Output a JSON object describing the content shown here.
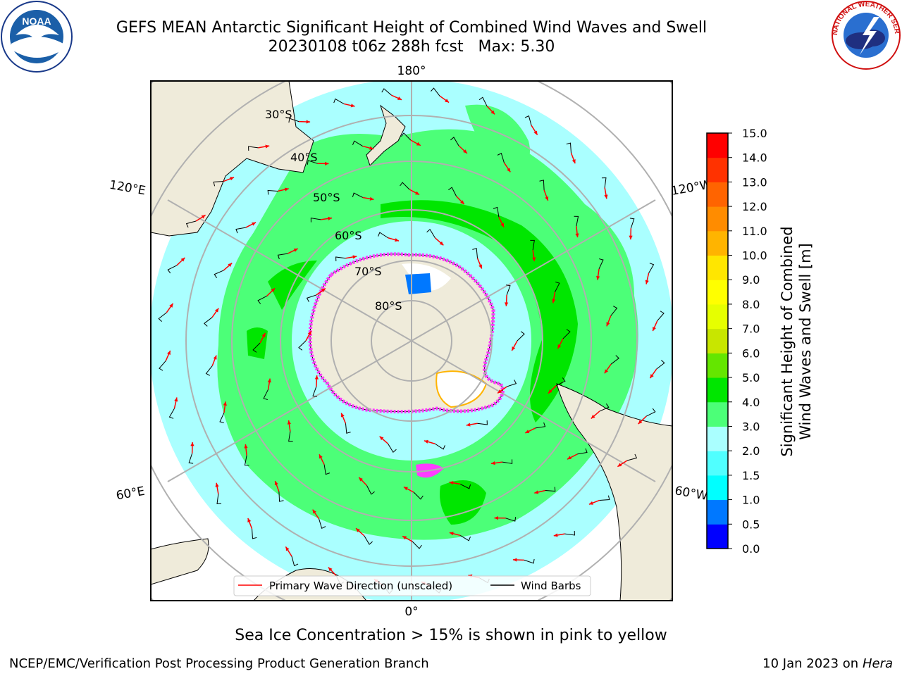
{
  "header": {
    "title_line1": "GEFS MEAN Antarctic Significant Height of Combined Wind Waves and Swell",
    "title_line2": "20230108 t06z 288h fcst   Max: 5.30"
  },
  "logos": {
    "left": {
      "text": "NOAA",
      "ring_text": "NATIONAL OCEANIC AND ATMOSPHERIC ADMINISTRATION · U.S. DEPARTMENT OF COMMERCE"
    },
    "right": {
      "ring_text": "NATIONAL WEATHER SERVICE"
    }
  },
  "map": {
    "lon_labels": {
      "top": "180°",
      "bottom": "0°",
      "upper_left": "120°E",
      "upper_right": "120°W",
      "lower_left": "60°E",
      "lower_right": "60°W"
    },
    "lat_labels": [
      "30°S",
      "40°S",
      "50°S",
      "60°S",
      "70°S",
      "80°S"
    ],
    "legend": {
      "wave_label": "Primary Wave Direction (unscaled)",
      "barb_label": "Wind Barbs",
      "wave_color": "#ff0000",
      "barb_color": "#000000"
    }
  },
  "colorbar": {
    "label_line1": "Significant Height of Combined",
    "label_line2": "Wind Waves and Swell [m]",
    "ticks": [
      "0.0",
      "0.5",
      "1.0",
      "1.5",
      "2.0",
      "3.0",
      "4.0",
      "5.0",
      "6.0",
      "7.0",
      "8.0",
      "9.0",
      "10.0",
      "11.0",
      "12.0",
      "13.0",
      "14.0",
      "15.0"
    ],
    "colors": [
      "#0000ff",
      "#0078ff",
      "#00ffff",
      "#50ffff",
      "#aaffff",
      "#4cff78",
      "#00e600",
      "#64e600",
      "#c8e600",
      "#e6ff00",
      "#ffff00",
      "#ffe600",
      "#ffb400",
      "#ff8c00",
      "#ff6400",
      "#ff3200",
      "#ff0000"
    ]
  },
  "footer": {
    "subtitle": "Sea Ice Concentration > 15% is shown in pink to yellow",
    "credit": "NCEP/EMC/Verification Post Processing Product Generation Branch",
    "date_prefix": "10 Jan 2023 on ",
    "date_machine": "Hera"
  }
}
